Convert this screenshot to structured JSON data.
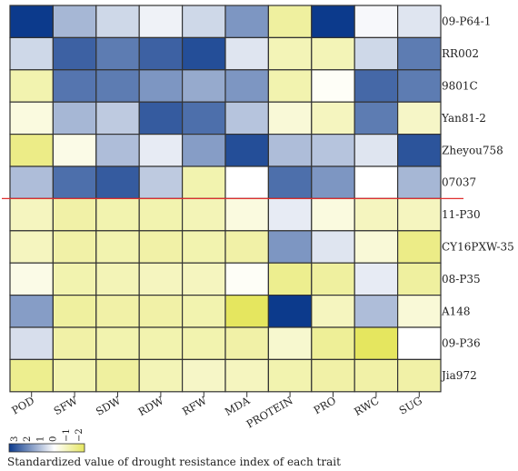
{
  "chart_data": {
    "type": "heatmap",
    "columns": [
      "POD",
      "SFW",
      "SDW",
      "RDW",
      "RFW",
      "MDA",
      "PROTEIN",
      "PRO",
      "RWC",
      "SUG"
    ],
    "rows": [
      "09-P64-1",
      "RR002",
      "9801C",
      "Yan81-2",
      "Zheyou758",
      "07037",
      "11-P30",
      "CY16PXW-35",
      "08-P35",
      "A148",
      "09-P36",
      "Jia972"
    ],
    "values": [
      [
        3.0,
        1.1,
        0.6,
        0.2,
        0.6,
        1.6,
        -1.2,
        3.0,
        0.1,
        0.4
      ],
      [
        0.6,
        2.4,
        2.0,
        2.4,
        2.7,
        0.4,
        -0.9,
        -0.9,
        0.6,
        2.0
      ],
      [
        -1.0,
        2.1,
        2.0,
        1.6,
        1.3,
        1.6,
        -1.0,
        -0.1,
        2.3,
        2.0
      ],
      [
        -0.4,
        1.1,
        0.8,
        2.5,
        2.2,
        0.9,
        -0.5,
        -0.8,
        2.0,
        -0.7
      ],
      [
        -1.5,
        -0.3,
        1.0,
        0.3,
        1.5,
        2.7,
        1.0,
        0.9,
        0.4,
        2.6
      ],
      [
        1.0,
        2.2,
        2.5,
        0.8,
        -1.0,
        0.0,
        2.2,
        1.6,
        0.0,
        1.1
      ],
      [
        -0.8,
        -1.1,
        -1.0,
        -1.0,
        -0.9,
        -0.4,
        0.3,
        -0.4,
        -0.8,
        -0.8
      ],
      [
        -0.8,
        -1.1,
        -1.0,
        -1.1,
        -1.0,
        -1.1,
        1.6,
        0.4,
        -0.5,
        -1.5
      ],
      [
        -0.3,
        -1.0,
        -0.9,
        -0.8,
        -0.8,
        -0.1,
        -1.4,
        -1.2,
        0.3,
        -1.2
      ],
      [
        1.5,
        -1.2,
        -1.1,
        -1.1,
        -1.0,
        -2.0,
        3.0,
        -0.8,
        1.0,
        -0.5
      ],
      [
        0.5,
        -1.1,
        -1.0,
        -1.0,
        -1.0,
        -1.1,
        -0.6,
        -1.3,
        -2.2,
        0.0
      ],
      [
        -1.4,
        -1.0,
        -1.2,
        -0.9,
        -0.7,
        -0.8,
        -1.0,
        -1.1,
        -1.1,
        -1.1
      ]
    ],
    "colormap": {
      "high": "#0c3a8c",
      "mid": "#ffffff",
      "low": "#e5e65f"
    },
    "scale": {
      "min": -2,
      "max": 3,
      "tick_labels": [
        "3",
        "2",
        "1",
        "0",
        "−1",
        "−2"
      ]
    },
    "caption": "Standardized value of drought resistance index of each trait",
    "divider": {
      "after_row": 6,
      "color": "#e03030"
    },
    "grid": true
  }
}
